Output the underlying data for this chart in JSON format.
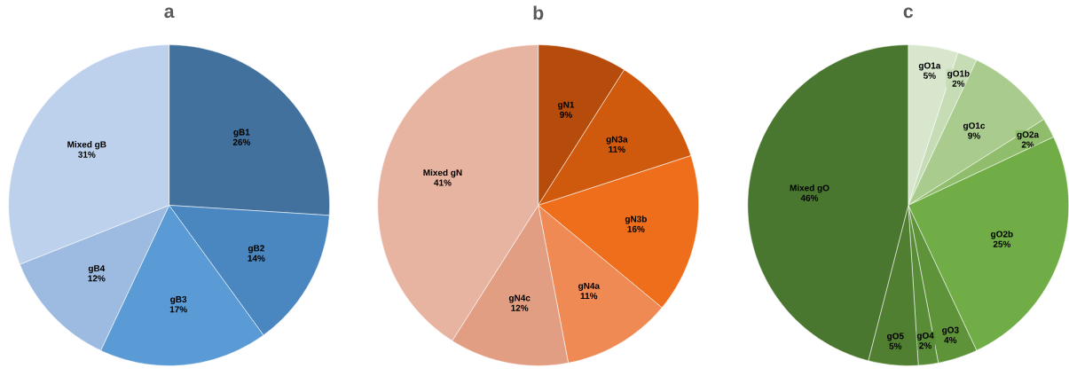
{
  "chart_data": [
    {
      "type": "pie",
      "title": "a",
      "categories": [
        "gB1",
        "gB2",
        "gB3",
        "gB4",
        "Mixed gB"
      ],
      "values": [
        26,
        14,
        17,
        12,
        31
      ],
      "value_labels": [
        "26%",
        "14%",
        "17%",
        "12%",
        "31%"
      ],
      "colors": [
        "#41719c",
        "#4a86c0",
        "#5b9bd5",
        "#9dbbe0",
        "#bdd1ec"
      ]
    },
    {
      "type": "pie",
      "title": "b",
      "categories": [
        "gN1",
        "gN3a",
        "gN3b",
        "gN4a",
        "gN4c",
        "Mixed gN"
      ],
      "values": [
        9,
        11,
        16,
        11,
        12,
        41
      ],
      "value_labels": [
        "9%",
        "11%",
        "16%",
        "11%",
        "12%",
        "41%"
      ],
      "colors": [
        "#b54c0c",
        "#cf5a0e",
        "#ee6e1c",
        "#ef8a55",
        "#e29e82",
        "#e8b4a2"
      ]
    },
    {
      "type": "pie",
      "title": "c",
      "categories": [
        "gO1a",
        "gO1b",
        "gO1c",
        "gO2a",
        "gO2b",
        "gO3",
        "gO4",
        "gO5",
        "Mixed gO"
      ],
      "values": [
        5,
        2,
        9,
        2,
        25,
        4,
        2,
        5,
        46
      ],
      "value_labels": [
        "5%",
        "2%",
        "9%",
        "2%",
        "25%",
        "4%",
        "2%",
        "5%",
        "46%"
      ],
      "colors": [
        "#d7e6cd",
        "#c5dcb5",
        "#a9cc8e",
        "#8fbd6b",
        "#70ad47",
        "#5e9339",
        "#588c36",
        "#507f31",
        "#4a772f"
      ]
    }
  ]
}
